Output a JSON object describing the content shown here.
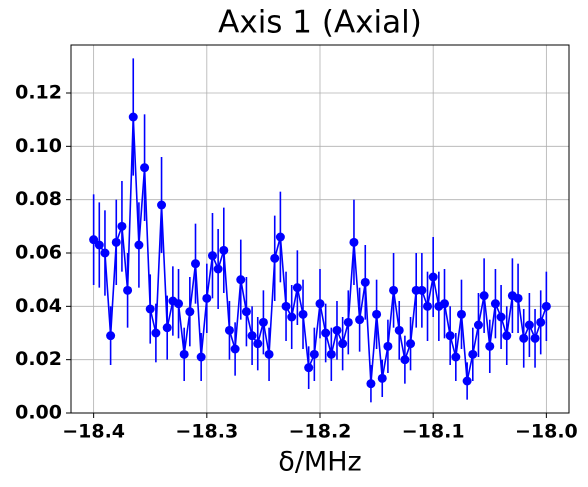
{
  "chart_data": {
    "type": "line",
    "title": "Axis 1 (Axial)",
    "xlabel": "δ/MHz",
    "x": [
      -18.4,
      -18.395,
      -18.39,
      -18.385,
      -18.38,
      -18.375,
      -18.37,
      -18.365,
      -18.36,
      -18.355,
      -18.35,
      -18.345,
      -18.34,
      -18.335,
      -18.33,
      -18.325,
      -18.32,
      -18.315,
      -18.31,
      -18.305,
      -18.3,
      -18.295,
      -18.29,
      -18.285,
      -18.28,
      -18.275,
      -18.27,
      -18.265,
      -18.26,
      -18.255,
      -18.25,
      -18.245,
      -18.24,
      -18.235,
      -18.23,
      -18.225,
      -18.22,
      -18.215,
      -18.21,
      -18.205,
      -18.2,
      -18.195,
      -18.19,
      -18.185,
      -18.18,
      -18.175,
      -18.17,
      -18.165,
      -18.16,
      -18.155,
      -18.15,
      -18.145,
      -18.14,
      -18.135,
      -18.13,
      -18.125,
      -18.12,
      -18.115,
      -18.11,
      -18.105,
      -18.1,
      -18.095,
      -18.09,
      -18.085,
      -18.08,
      -18.075,
      -18.07,
      -18.065,
      -18.06,
      -18.055,
      -18.05,
      -18.045,
      -18.04,
      -18.035,
      -18.03,
      -18.025,
      -18.02,
      -18.015,
      -18.01,
      -18.005,
      -18.0
    ],
    "series": [
      {
        "color": "#0000ff",
        "values": [
          0.065,
          0.063,
          0.06,
          0.029,
          0.064,
          0.07,
          0.046,
          0.111,
          0.063,
          0.092,
          0.039,
          0.03,
          0.078,
          0.032,
          0.042,
          0.041,
          0.022,
          0.038,
          0.056,
          0.021,
          0.043,
          0.059,
          0.054,
          0.061,
          0.031,
          0.024,
          0.05,
          0.038,
          0.029,
          0.026,
          0.034,
          0.022,
          0.058,
          0.066,
          0.04,
          0.036,
          0.047,
          0.037,
          0.017,
          0.022,
          0.041,
          0.03,
          0.022,
          0.031,
          0.026,
          0.034,
          0.064,
          0.035,
          0.049,
          0.011,
          0.037,
          0.013,
          0.025,
          0.046,
          0.031,
          0.02,
          0.026,
          0.046,
          0.046,
          0.04,
          0.051,
          0.04,
          0.041,
          0.029,
          0.021,
          0.037,
          0.012,
          0.022,
          0.033,
          0.044,
          0.025,
          0.041,
          0.036,
          0.029,
          0.044,
          0.043,
          0.028,
          0.033,
          0.028,
          0.034,
          0.04
        ],
        "errors": [
          0.017,
          0.016,
          0.016,
          0.011,
          0.016,
          0.017,
          0.014,
          0.022,
          0.016,
          0.02,
          0.013,
          0.011,
          0.018,
          0.012,
          0.013,
          0.013,
          0.01,
          0.013,
          0.015,
          0.009,
          0.013,
          0.016,
          0.015,
          0.016,
          0.011,
          0.01,
          0.015,
          0.013,
          0.011,
          0.01,
          0.012,
          0.01,
          0.016,
          0.017,
          0.013,
          0.012,
          0.014,
          0.013,
          0.008,
          0.01,
          0.013,
          0.011,
          0.01,
          0.011,
          0.01,
          0.012,
          0.016,
          0.012,
          0.014,
          0.007,
          0.013,
          0.007,
          0.01,
          0.014,
          0.011,
          0.009,
          0.01,
          0.014,
          0.014,
          0.013,
          0.015,
          0.013,
          0.013,
          0.011,
          0.009,
          0.013,
          0.007,
          0.01,
          0.012,
          0.014,
          0.01,
          0.013,
          0.012,
          0.011,
          0.014,
          0.013,
          0.011,
          0.012,
          0.011,
          0.012,
          0.013
        ]
      }
    ],
    "xlim": [
      -18.42,
      -17.98
    ],
    "ylim": [
      0,
      0.138
    ],
    "xticks": [
      {
        "value": -18.4,
        "label": "−18.4"
      },
      {
        "value": -18.3,
        "label": "−18.3"
      },
      {
        "value": -18.2,
        "label": "−18.2"
      },
      {
        "value": -18.1,
        "label": "−18.1"
      },
      {
        "value": -18.0,
        "label": "−18.0"
      }
    ],
    "yticks": [
      {
        "value": 0,
        "label": "0.00"
      },
      {
        "value": 0.02,
        "label": "0.02"
      },
      {
        "value": 0.04,
        "label": "0.04"
      },
      {
        "value": 0.06,
        "label": "0.06"
      },
      {
        "value": 0.08,
        "label": "0.08"
      },
      {
        "value": 0.1,
        "label": "0.10"
      },
      {
        "value": 0.12,
        "label": "0.12"
      }
    ],
    "grid": true
  }
}
